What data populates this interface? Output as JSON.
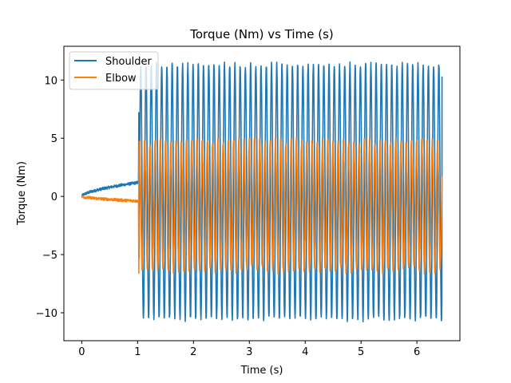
{
  "chart_data": {
    "type": "line",
    "title": "Torque (Nm) vs Time (s)",
    "xlabel": "Time (s)",
    "ylabel": "Torque (Nm)",
    "xlim": [
      -0.32,
      6.77
    ],
    "ylim": [
      -12.4,
      12.9
    ],
    "xticks": [
      0,
      1,
      2,
      3,
      4,
      5,
      6
    ],
    "yticks": [
      -10,
      -5,
      0,
      5,
      10
    ],
    "grid": false,
    "legend_position": "top-left",
    "oscillation_start_time": 1.02,
    "end_time": 6.45,
    "cycles": 58,
    "series": [
      {
        "name": "Shoulder",
        "color": "#1f77b4",
        "initial_value": 0.0,
        "ramp_end_value": 1.2,
        "oscillation_max": 11.9,
        "oscillation_min": -11.1,
        "final_value": 10.3
      },
      {
        "name": "Elbow",
        "color": "#ff7f0e",
        "initial_value": 0.0,
        "ramp_end_value": -0.4,
        "oscillation_max": 5.0,
        "oscillation_min": -6.6,
        "final_value": 1.0
      }
    ]
  }
}
